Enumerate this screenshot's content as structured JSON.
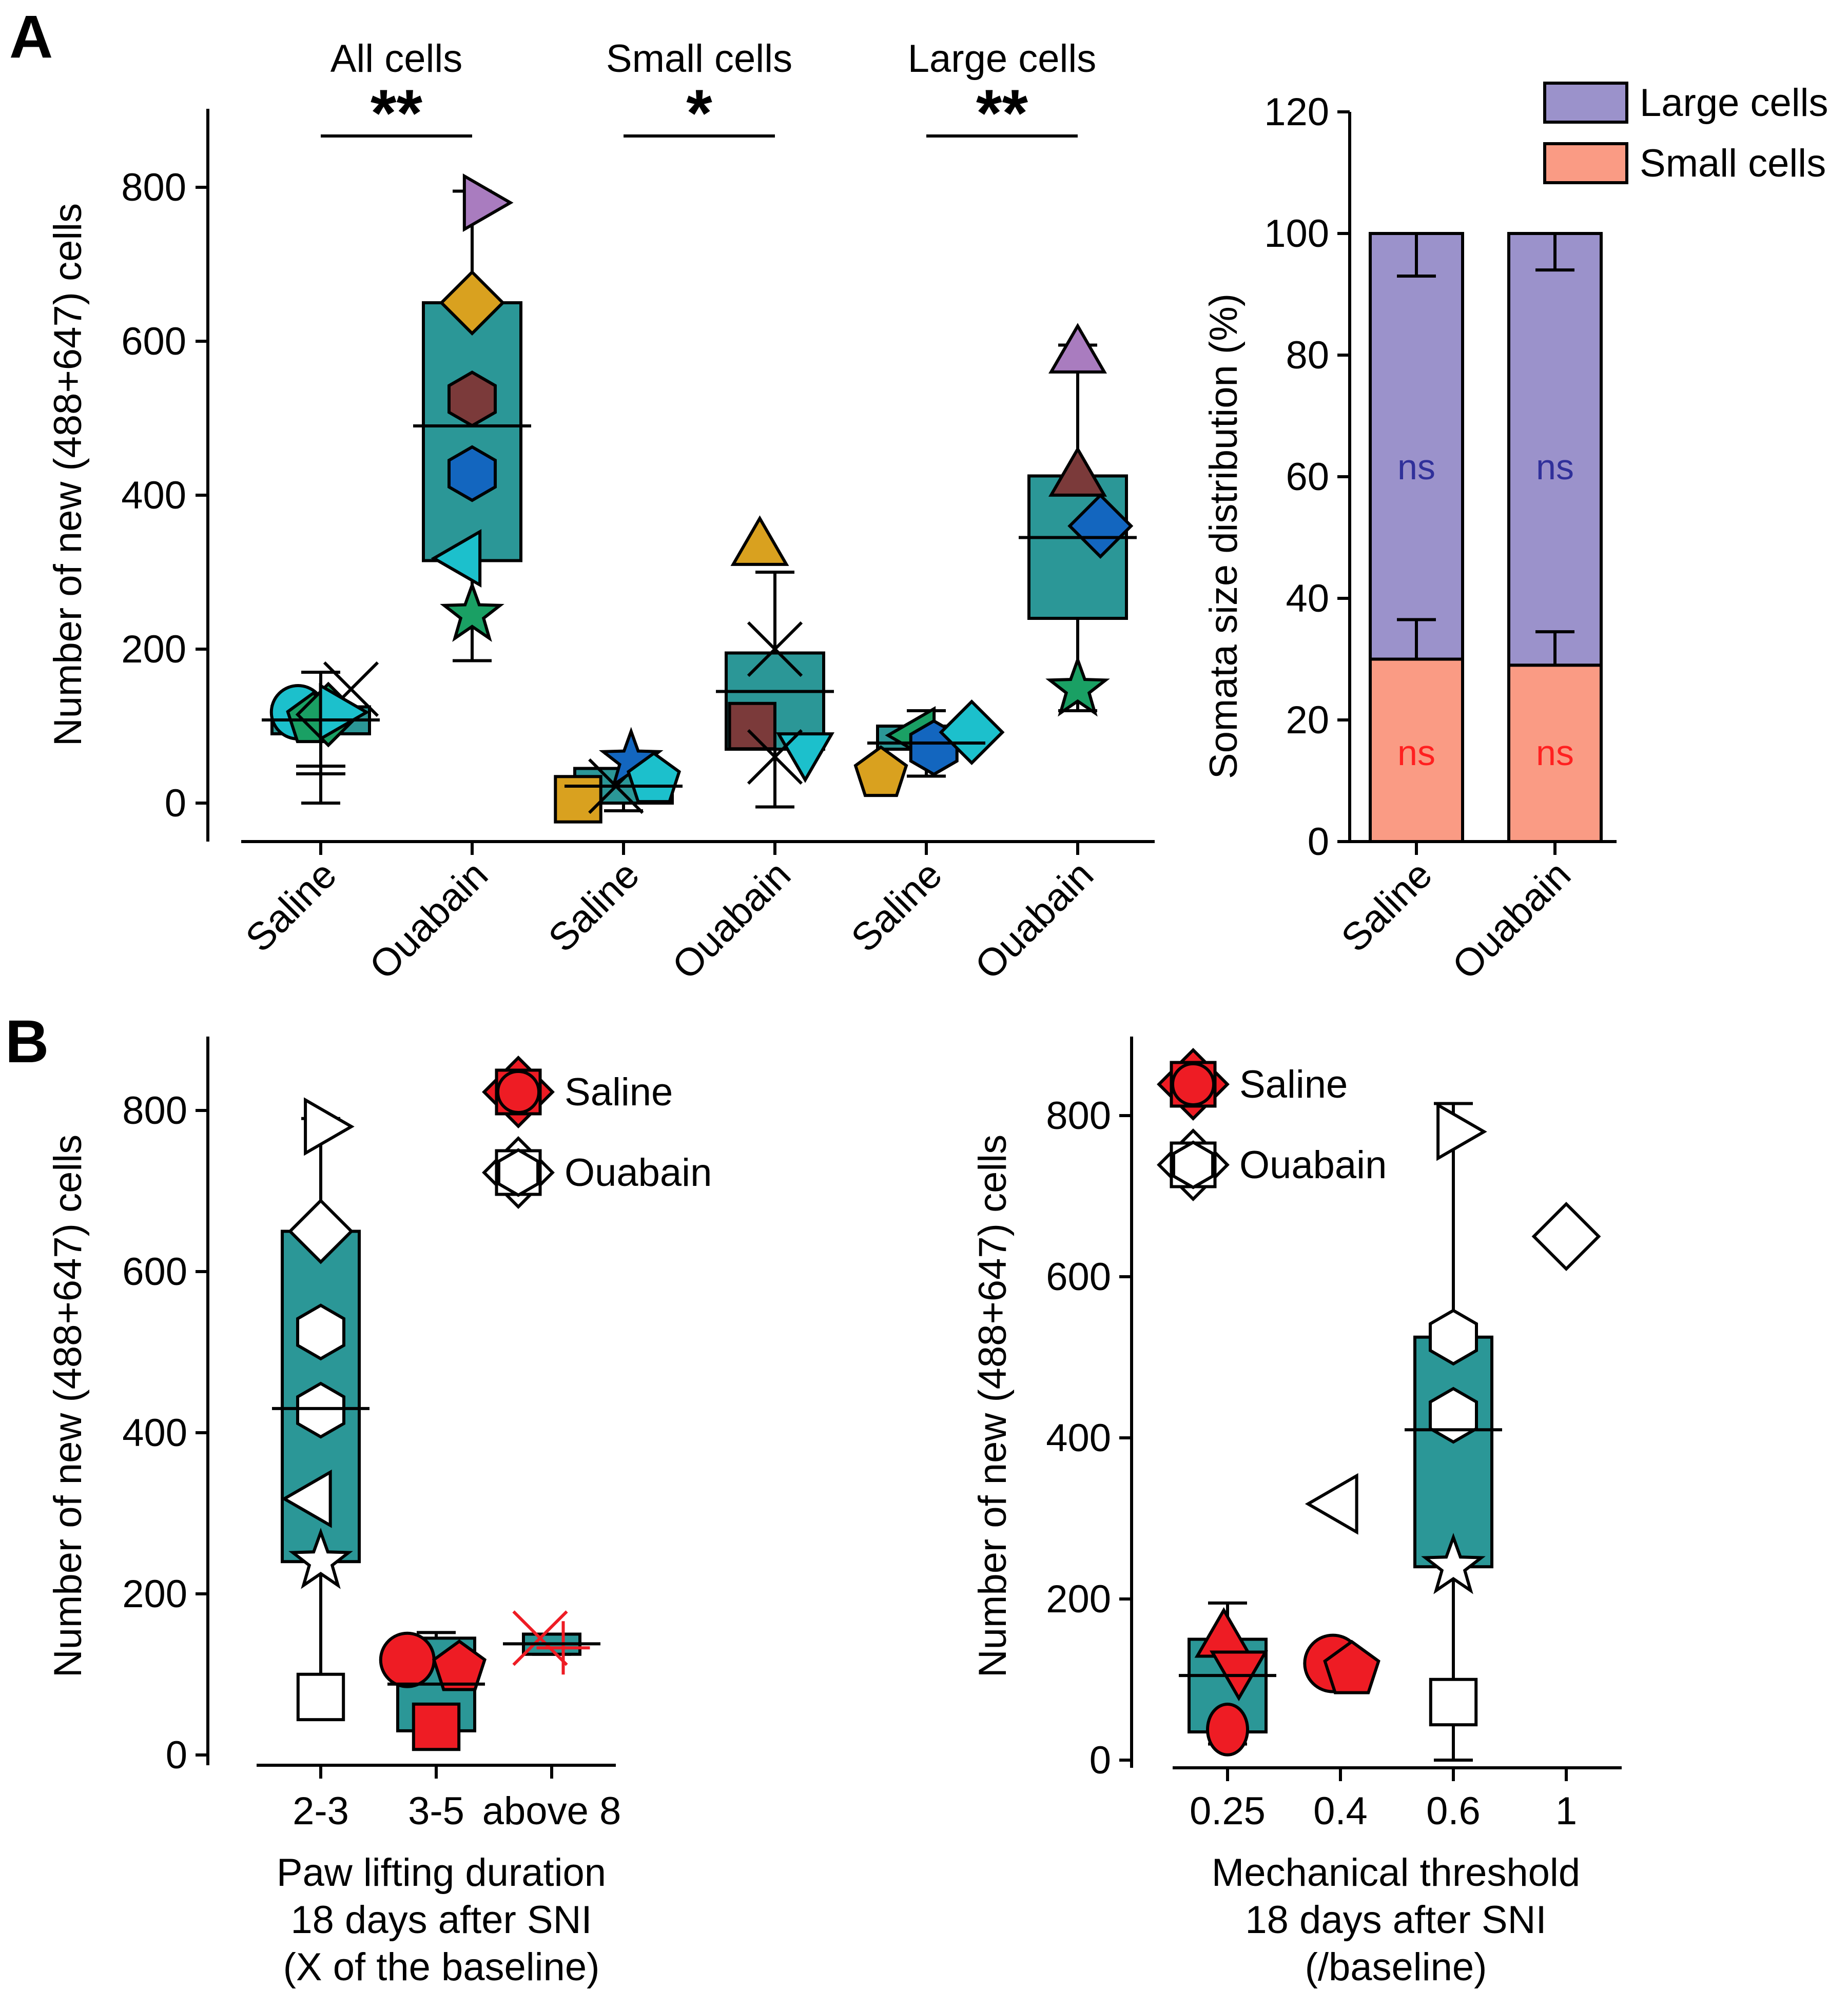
{
  "panel_labels": {
    "a": "A",
    "b": "B"
  },
  "chart_data": [
    {
      "id": "A1",
      "type": "box-scatter",
      "ylabel": "Number of new (488+647) cells",
      "ylim": [
        -50,
        900
      ],
      "yticks": [
        0,
        200,
        400,
        600,
        800
      ],
      "categories": [
        "Saline",
        "Ouabain",
        "Saline",
        "Ouabain",
        "Saline",
        "Ouabain"
      ],
      "group_titles": [
        "All cells",
        "Small cells",
        "Large cells"
      ],
      "significance": [
        "**",
        "*",
        "**"
      ],
      "groups": [
        {
          "label": "Saline",
          "box": [
            90,
            125
          ],
          "mean": 108,
          "whisker": [
            0,
            170
          ],
          "cap_marks": [
            48,
            38
          ],
          "points": [
            {
              "shape": "circle",
              "value": 118,
              "color": "#1cc0cc",
              "dx": -0.15
            },
            {
              "shape": "pentagon",
              "value": 108,
              "color": "#1aa064",
              "dx": -0.05
            },
            {
              "shape": "diamond",
              "value": 115,
              "color": "#1aa064",
              "dx": 0.05
            },
            {
              "shape": "x",
              "value": 148,
              "color": "#000000",
              "dx": 0.2
            },
            {
              "shape": "triangle-right",
              "value": 118,
              "color": "#1cc0cc",
              "dx": 0.1
            }
          ]
        },
        {
          "label": "Ouabain",
          "box": [
            315,
            650
          ],
          "mean": 490,
          "whisker": [
            185,
            795
          ],
          "cap_marks": [],
          "points": [
            {
              "shape": "triangle-right",
              "value": 780,
              "color": "#a97cbf",
              "dx": 0.05
            },
            {
              "shape": "diamond",
              "value": 650,
              "color": "#d9a11f",
              "dx": 0
            },
            {
              "shape": "hexagon",
              "value": 525,
              "color": "#7b3a3a",
              "dx": 0
            },
            {
              "shape": "hexagon",
              "value": 428,
              "color": "#1366bf",
              "dx": 0
            },
            {
              "shape": "triangle-left",
              "value": 318,
              "color": "#1cc0cc",
              "dx": -0.05
            },
            {
              "shape": "star",
              "value": 245,
              "color": "#1aa064",
              "dx": 0
            }
          ]
        },
        {
          "label": "Saline",
          "box": [
            0,
            45
          ],
          "mean": 22,
          "whisker": [
            -10,
            65
          ],
          "cap_marks": [],
          "points": [
            {
              "shape": "square",
              "value": 5,
              "color": "#d9a11f",
              "dx": -0.3
            },
            {
              "shape": "x",
              "value": 22,
              "color": "#000000",
              "dx": -0.05
            },
            {
              "shape": "star",
              "value": 55,
              "color": "#1366bf",
              "dx": 0.05
            },
            {
              "shape": "pentagon",
              "value": 30,
              "color": "#1cc0cc",
              "dx": 0.2
            }
          ]
        },
        {
          "label": "Ouabain",
          "box": [
            70,
            195
          ],
          "mean": 145,
          "whisker": [
            -5,
            300
          ],
          "cap_marks": [],
          "points": [
            {
              "shape": "triangle-up",
              "value": 330,
              "color": "#d9a11f",
              "dx": -0.1
            },
            {
              "shape": "x",
              "value": 200,
              "color": "#000000",
              "dx": 0
            },
            {
              "shape": "square",
              "value": 100,
              "color": "#7b3a3a",
              "dx": -0.15
            },
            {
              "shape": "triangle-down",
              "value": 70,
              "color": "#1cc0cc",
              "dx": 0.2
            },
            {
              "shape": "x",
              "value": 60,
              "color": "#000000",
              "dx": 0
            }
          ]
        },
        {
          "label": "Saline",
          "box": [
            70,
            100
          ],
          "mean": 78,
          "whisker": [
            35,
            120
          ],
          "cap_marks": [],
          "points": [
            {
              "shape": "pentagon",
              "value": 38,
              "color": "#d9a11f",
              "dx": -0.3
            },
            {
              "shape": "triangle-left",
              "value": 88,
              "color": "#1aa064",
              "dx": -0.05
            },
            {
              "shape": "hexagon",
              "value": 72,
              "color": "#1366bf",
              "dx": 0.05
            },
            {
              "shape": "diamond",
              "value": 92,
              "color": "#1cc0cc",
              "dx": 0.3
            }
          ]
        },
        {
          "label": "Ouabain",
          "box": [
            240,
            425
          ],
          "mean": 345,
          "whisker": [
            120,
            595
          ],
          "cap_marks": [
            320
          ],
          "points": [
            {
              "shape": "triangle-up",
              "value": 580,
              "color": "#a97cbf",
              "dx": 0
            },
            {
              "shape": "triangle-up",
              "value": 420,
              "color": "#7b3a3a",
              "dx": 0
            },
            {
              "shape": "diamond",
              "value": 360,
              "color": "#1366bf",
              "dx": 0.15
            },
            {
              "shape": "star",
              "value": 148,
              "color": "#1aa064",
              "dx": 0
            }
          ]
        }
      ]
    },
    {
      "id": "A2",
      "type": "stacked-bar",
      "ylabel": "Somata size distribution (%)",
      "ylim": [
        0,
        120
      ],
      "yticks": [
        0,
        20,
        40,
        60,
        80,
        100,
        120
      ],
      "categories": [
        "Saline",
        "Ouabain"
      ],
      "series": [
        {
          "name": "Small cells",
          "values": [
            30,
            29
          ],
          "errors": [
            6.5,
            5.5
          ],
          "color": "#fa9b84",
          "annotation": "ns",
          "annotation_color": "#ff2020"
        },
        {
          "name": "Large cells",
          "values": [
            70,
            71
          ],
          "errors": [
            7,
            6
          ],
          "color": "#9b92cb",
          "annotation": "ns",
          "annotation_color": "#30309a"
        }
      ],
      "legend": [
        "Large cells",
        "Small cells"
      ]
    },
    {
      "id": "B1",
      "type": "box-scatter",
      "ylabel": "Number of new (488+647) cells",
      "ylim": [
        -10,
        900
      ],
      "yticks": [
        0,
        200,
        400,
        600,
        800
      ],
      "categories": [
        "2-3",
        "3-5",
        "above 8"
      ],
      "xlabel": [
        "Paw lifting duration",
        "18 days after SNI",
        "(X of the baseline)"
      ],
      "legend": [
        {
          "label": "Saline",
          "color": "#ee1c24"
        },
        {
          "label": "Ouabain",
          "color": "#ffffff"
        }
      ],
      "groups": [
        {
          "label": "2-3",
          "box": [
            240,
            650
          ],
          "mean": 430,
          "whisker": [
            70,
            790
          ],
          "cap_marks": [],
          "points": [
            {
              "shape": "triangle-right",
              "value": 780,
              "color": "#ffffff",
              "dx": 0
            },
            {
              "shape": "diamond",
              "value": 650,
              "color": "#ffffff",
              "dx": 0
            },
            {
              "shape": "hexagon",
              "value": 525,
              "color": "#ffffff",
              "dx": 0
            },
            {
              "shape": "hexagon",
              "value": 428,
              "color": "#ffffff",
              "dx": 0
            },
            {
              "shape": "triangle-left",
              "value": 318,
              "color": "#ffffff",
              "dx": -0.05
            },
            {
              "shape": "star",
              "value": 240,
              "color": "#ffffff",
              "dx": 0
            },
            {
              "shape": "square",
              "value": 72,
              "color": "#ffffff",
              "dx": 0
            }
          ]
        },
        {
          "label": "3-5",
          "box": [
            30,
            145
          ],
          "mean": 88,
          "whisker": [
            30,
            152
          ],
          "cap_marks": [],
          "points": [
            {
              "shape": "circle",
              "value": 118,
              "color": "#ee1c24",
              "dx": -0.25
            },
            {
              "shape": "pentagon",
              "value": 108,
              "color": "#ee1c24",
              "dx": 0.2
            },
            {
              "shape": "square",
              "value": 35,
              "color": "#ee1c24",
              "dx": 0
            }
          ]
        },
        {
          "label": "above 8",
          "box": [
            125,
            150
          ],
          "mean": 138,
          "whisker": [
            125,
            150
          ],
          "cap_marks": [],
          "points": [
            {
              "shape": "x",
              "value": 145,
              "color": "#ee1c24",
              "dx": -0.1
            },
            {
              "shape": "plus",
              "value": 133,
              "color": "#ee1c24",
              "dx": 0.1
            }
          ]
        }
      ]
    },
    {
      "id": "B2",
      "type": "box-scatter",
      "ylabel": "Number of new (488+647) cells",
      "ylim": [
        -10,
        900
      ],
      "yticks": [
        0,
        200,
        400,
        600,
        800
      ],
      "xticks": [
        "0.25",
        "0.4",
        "0.6",
        "1"
      ],
      "xlabel": [
        "Mechanical threshold",
        "18 days after SNI",
        "(/baseline)"
      ],
      "legend": [
        {
          "label": "Saline",
          "color": "#ee1c24"
        },
        {
          "label": "Ouabain",
          "color": "#ffffff"
        }
      ],
      "groups": [
        {
          "x": 0.25,
          "box": [
            35,
            150
          ],
          "mean": 105,
          "whisker": [
            20,
            195
          ],
          "cap_marks": [],
          "points": [
            {
              "shape": "triangle-up",
              "x": 0.245,
              "value": 148,
              "color": "#ee1c24"
            },
            {
              "shape": "triangle-down",
              "x": 0.265,
              "value": 115,
              "color": "#ee1c24"
            },
            {
              "shape": "ellipse",
              "x": 0.25,
              "value": 38,
              "color": "#ee1c24"
            }
          ]
        },
        {
          "x": 0.6,
          "box": [
            240,
            525
          ],
          "mean": 410,
          "whisker": [
            0,
            815
          ],
          "cap_marks": [],
          "points": [
            {
              "shape": "triangle-right",
              "x": 0.6,
              "value": 780,
              "color": "#ffffff"
            },
            {
              "shape": "hexagon",
              "x": 0.6,
              "value": 525,
              "color": "#ffffff"
            },
            {
              "shape": "hexagon",
              "x": 0.6,
              "value": 428,
              "color": "#ffffff"
            },
            {
              "shape": "star",
              "x": 0.6,
              "value": 240,
              "color": "#ffffff"
            },
            {
              "shape": "square",
              "x": 0.6,
              "value": 72,
              "color": "#ffffff"
            }
          ]
        }
      ],
      "extra_points": [
        {
          "shape": "circle",
          "x": 0.39,
          "value": 120,
          "color": "#ee1c24"
        },
        {
          "shape": "pentagon",
          "x": 0.42,
          "value": 112,
          "color": "#ee1c24"
        },
        {
          "shape": "triangle-left",
          "x": 0.4,
          "value": 318,
          "color": "#ffffff"
        },
        {
          "shape": "diamond",
          "x": 1,
          "value": 650,
          "color": "#ffffff"
        }
      ]
    }
  ]
}
